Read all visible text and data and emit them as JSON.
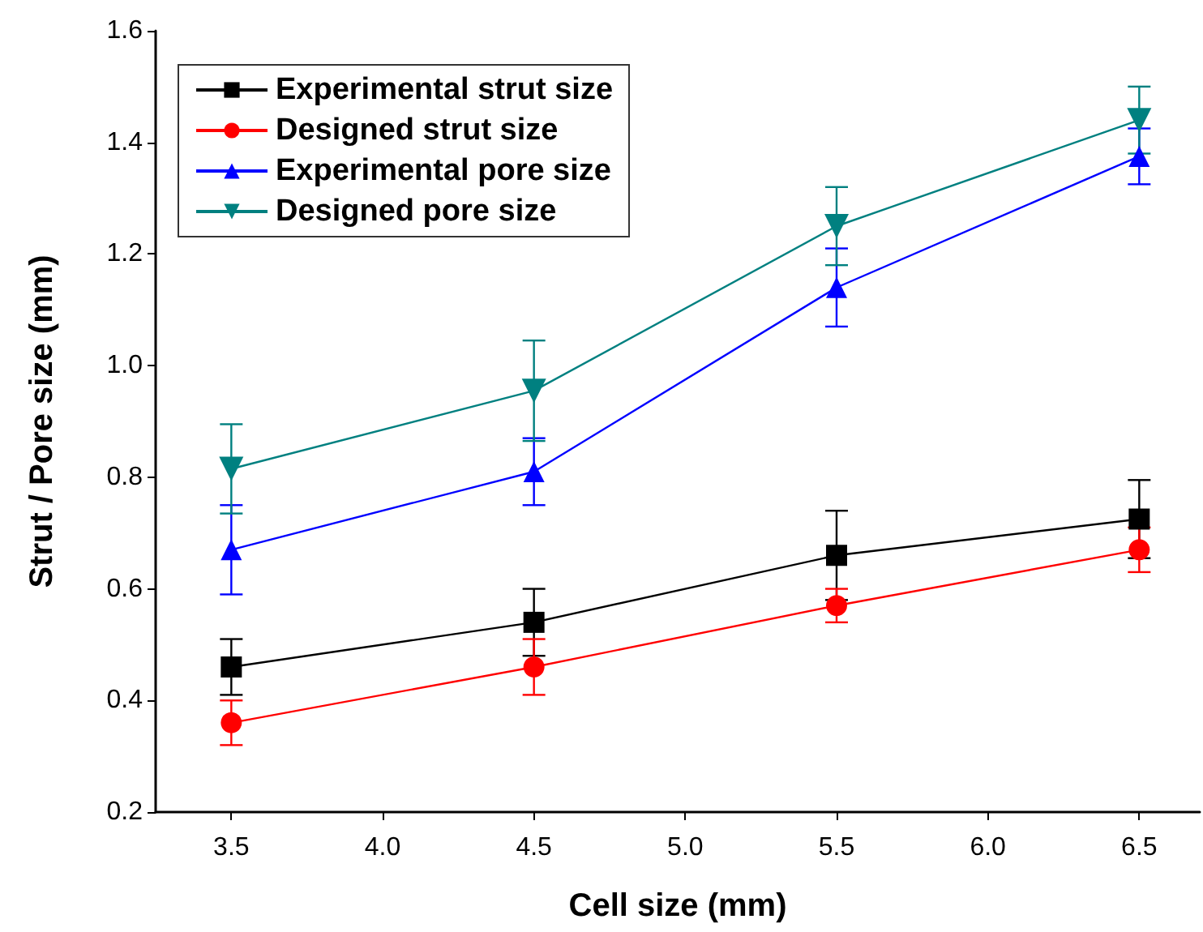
{
  "chart_data": {
    "type": "line",
    "xlabel": "Cell size (mm)",
    "ylabel": "Strut / Pore size (mm)",
    "x": [
      3.5,
      4.5,
      5.5,
      6.5
    ],
    "xlim": [
      3.25,
      6.7
    ],
    "xticks": [
      3.5,
      {
        "value": 4,
        "label": "4.0"
      },
      4.5,
      {
        "value": 5,
        "label": "5.0"
      },
      5.5,
      {
        "value": 6,
        "label": "6.0"
      },
      6.5
    ],
    "ylim": [
      0.2,
      1.6
    ],
    "yticks": [
      0.2,
      0.4,
      0.6,
      0.8,
      {
        "value": 1,
        "label": "1.0"
      },
      1.2,
      1.4,
      1.6
    ],
    "grid": false,
    "legend": "top left",
    "line_style": "solid",
    "series": [
      {
        "name": "Experimental strut size",
        "color": "#000000",
        "marker": "square",
        "values": [
          0.46,
          0.54,
          0.66,
          0.725
        ],
        "errors": [
          0.05,
          0.06,
          0.08,
          0.07
        ]
      },
      {
        "name": "Designed strut size",
        "color": "#ff0000",
        "marker": "circle",
        "values": [
          0.36,
          0.46,
          0.57,
          0.67
        ],
        "errors": [
          0.04,
          0.05,
          0.03,
          0.04
        ]
      },
      {
        "name": "Experimental pore size",
        "color": "#0000ff",
        "marker": "triangle",
        "values": [
          0.67,
          0.81,
          1.14,
          1.375
        ],
        "errors": [
          0.08,
          0.06,
          0.07,
          0.05
        ]
      },
      {
        "name": "Designed pore size",
        "color": "#008080",
        "marker": "triangle-down",
        "values": [
          0.815,
          0.955,
          1.25,
          1.44
        ],
        "errors": [
          0.08,
          0.09,
          0.07,
          0.06
        ]
      }
    ]
  }
}
